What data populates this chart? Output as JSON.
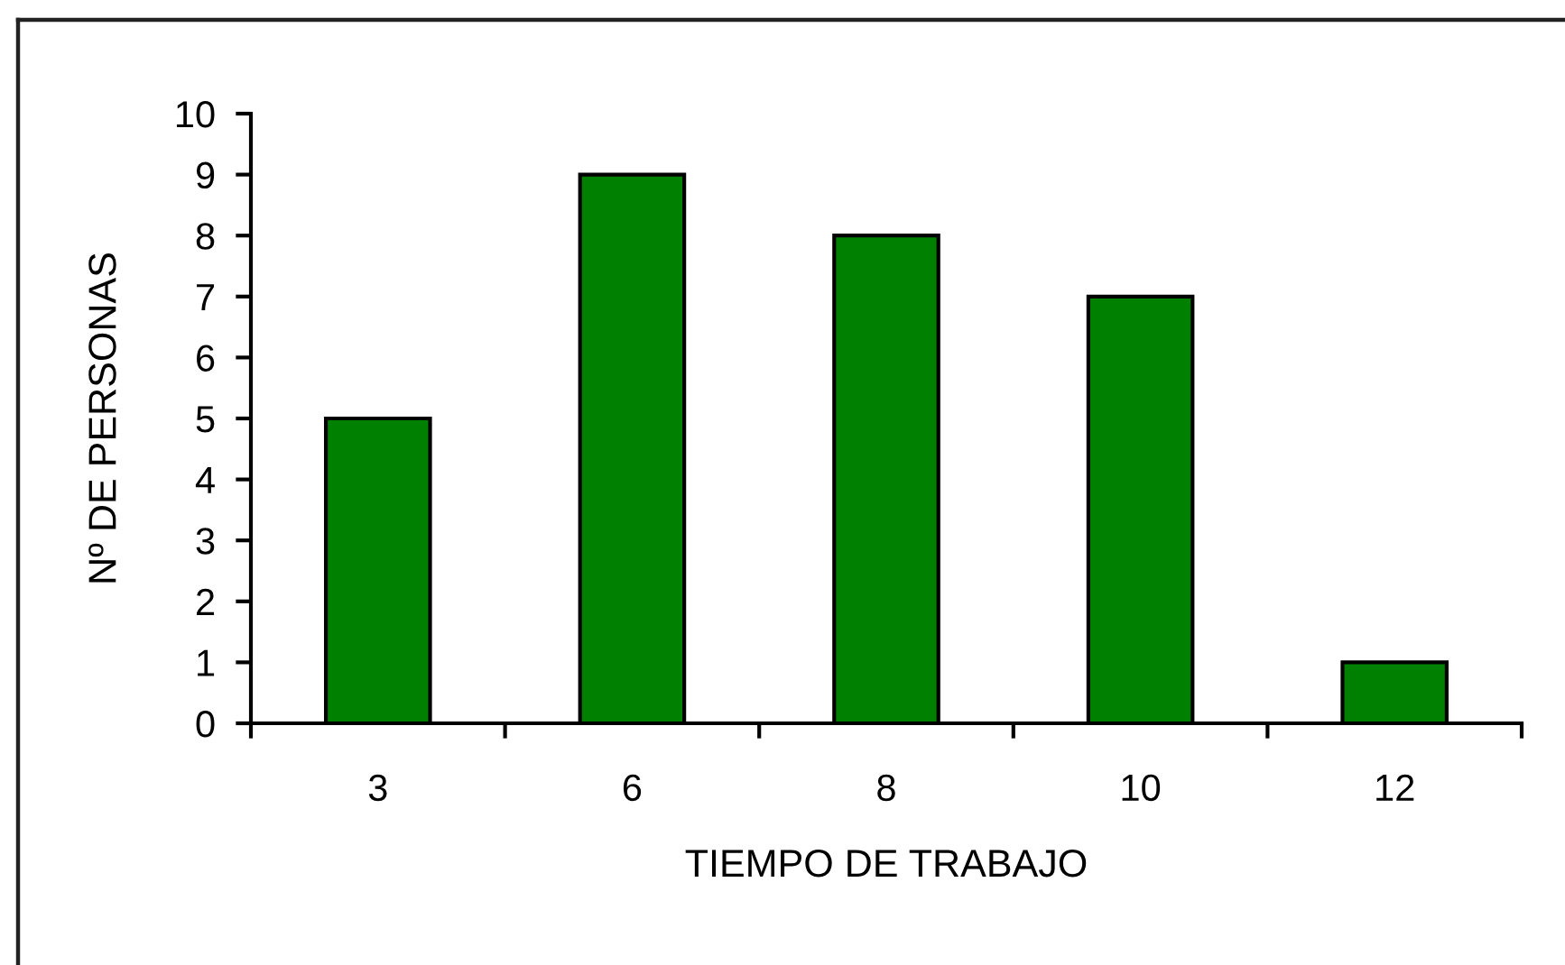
{
  "chart_data": {
    "type": "bar",
    "xlabel": "TIEMPO DE TRABAJO",
    "ylabel": "Nº DE PERSONAS",
    "categories": [
      "3",
      "6",
      "8",
      "10",
      "12"
    ],
    "values": [
      5,
      9,
      8,
      7,
      1
    ],
    "color": "#008000",
    "ylim": [
      0,
      10
    ],
    "yticks": [
      0,
      1,
      2,
      3,
      4,
      5,
      6,
      7,
      8,
      9,
      10
    ]
  }
}
